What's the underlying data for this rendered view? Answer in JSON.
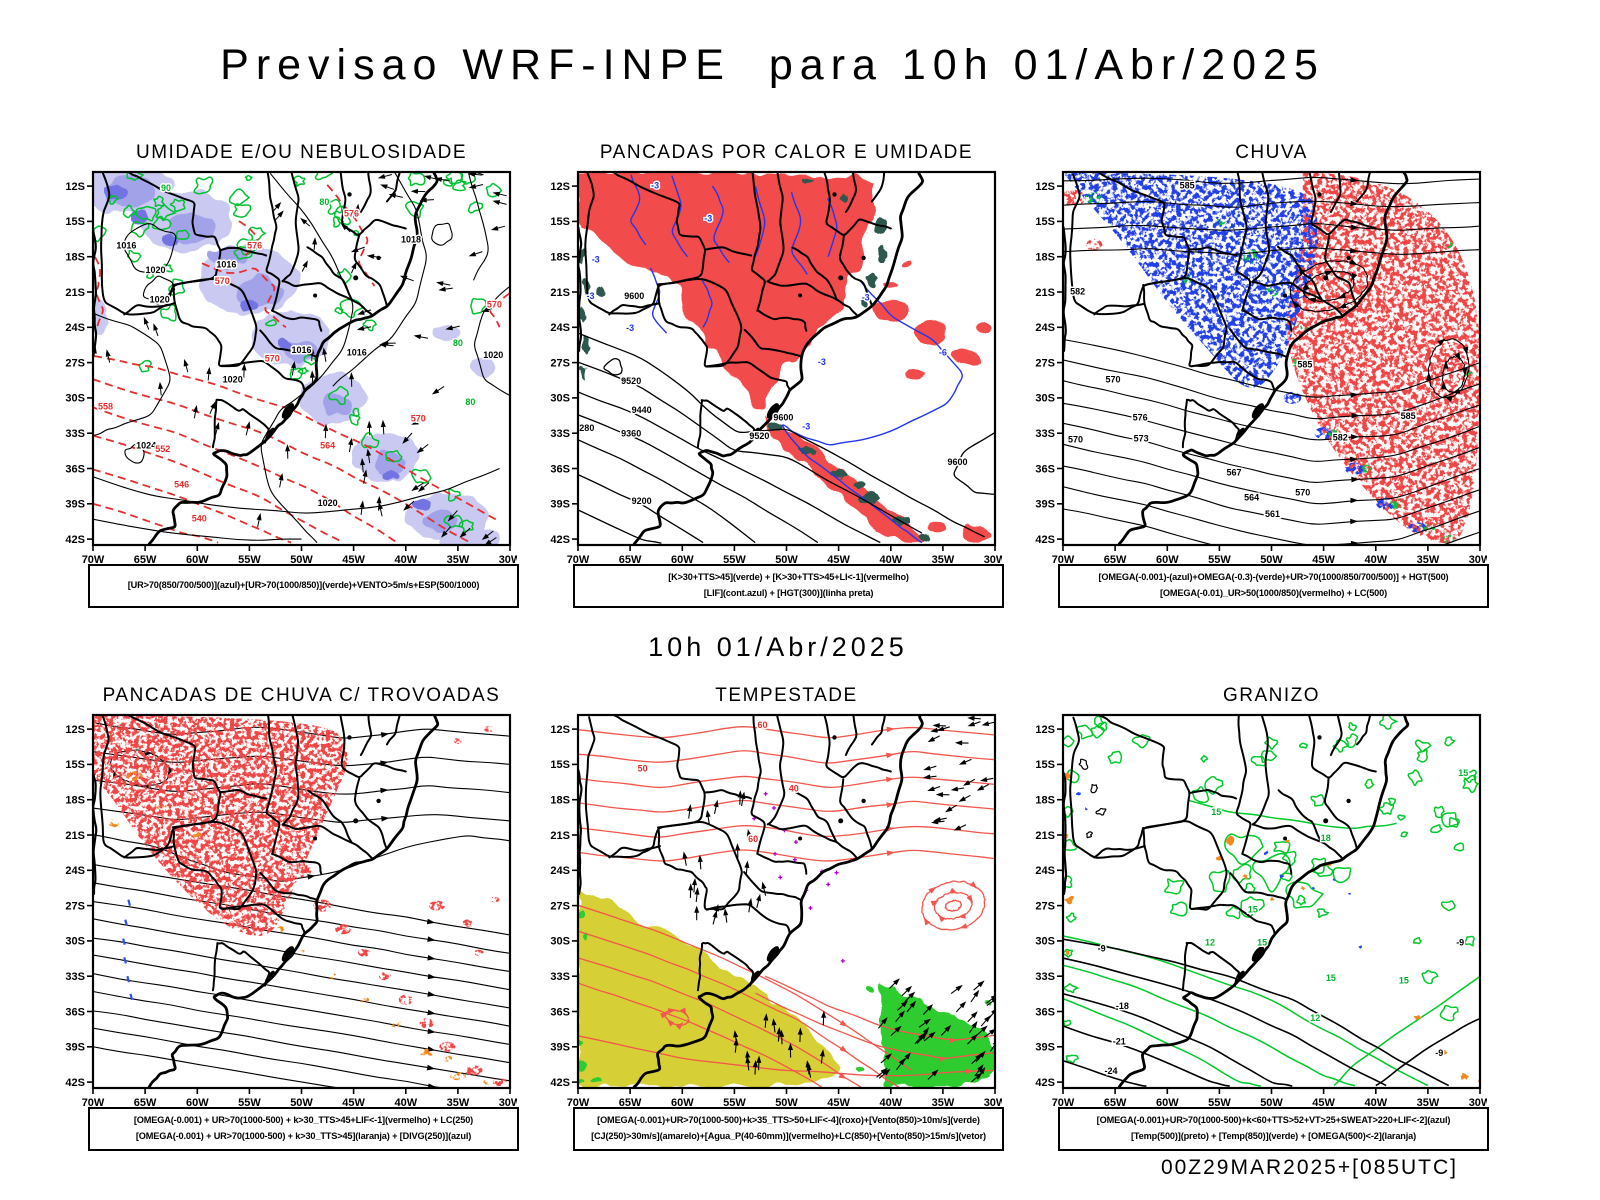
{
  "header": {
    "title": "Previsao WRF-INPE  para 10h 01/Abr/2025"
  },
  "subtitle": "10h 01/Abr/2025",
  "footer": "00Z29MAR2025+[085UTC]",
  "axes": {
    "lat_ticks": [
      "12S",
      "15S",
      "18S",
      "21S",
      "24S",
      "27S",
      "30S",
      "33S",
      "36S",
      "39S",
      "42S"
    ],
    "lon_ticks": [
      "70W",
      "65W",
      "60W",
      "55W",
      "50W",
      "45W",
      "40W",
      "35W",
      "30W"
    ]
  },
  "legend_colors": {
    "azul": "#2233ee",
    "verde": "#00c232",
    "vermelho": "#e62e2e",
    "laranja": "#f08a1e",
    "roxo": "#b300cc",
    "amarelo": "#d6cf35",
    "preto": "#000000",
    "sombra_umidade": "#a2a2e8"
  },
  "panels": [
    {
      "id": "umidade",
      "title": "UMIDADE E/OU NEBULOSIDADE",
      "caption_lines": [
        "[UR>70(850/700/500)](azul)+[UR>70(1000/850)](verde)+VENTO>5m/s+ESP(500/1000)"
      ],
      "map_labels": [
        "1016",
        "1020",
        "1020",
        "1016",
        "1018",
        "1016",
        "1016",
        "1020",
        "1024",
        "1020",
        "1020",
        "576",
        "570",
        "576",
        "570",
        "570",
        "564",
        "558",
        "552",
        "546",
        "540",
        "570",
        "80",
        "90",
        "80",
        "80"
      ]
    },
    {
      "id": "pancadas-calor",
      "title": "PANCADAS POR CALOR E UMIDADE",
      "caption_lines": [
        "[K>30+TTS>45](verde) + [K>30+TTS>45+LI<-1](vermelho)",
        "[LIF](cont.azul) + [HGT(300)](linha preta)"
      ],
      "map_labels": [
        "-3",
        "-3",
        "-3",
        "-3",
        "-3",
        "-3",
        "-3",
        "-3",
        "-6",
        "9600",
        "9520",
        "9440",
        "9360",
        "9280",
        "9200",
        "9520",
        "9600",
        "9600"
      ]
    },
    {
      "id": "chuva",
      "title": "CHUVA",
      "caption_lines": [
        "[OMEGA(-0.001)-(azul)+OMEGA(-0.3)-(verde)+UR>70(1000/850/700/500)] + HGT(500)",
        "[OMEGA(-0.01)_UR>50(1000/850)(vermelho) + LC(500)"
      ],
      "map_labels": [
        "585",
        "582",
        "585",
        "570",
        "576",
        "573",
        "570",
        "567",
        "564",
        "561",
        "582",
        "585",
        "570"
      ]
    },
    {
      "id": "trovoadas",
      "title": "PANCADAS DE CHUVA C/ TROVOADAS",
      "caption_lines": [
        "[OMEGA(-0.001) + UR>70(1000-500) + k>30_TTS>45+LIF<-1](vermelho) + LC(250)",
        "[OMEGA(-0.001) + UR>70(1000-500) + k>30_TTS>45](laranja) + [DIVG(250)](azul)"
      ],
      "map_labels": []
    },
    {
      "id": "tempestade",
      "title": "TEMPESTADE",
      "caption_lines": [
        "[OMEGA(-0.001)+UR>70(1000-500)+k>35_TTS>50+LIF<-4](roxo)+[Vento(850)>10m/s](verde)",
        "[CJ(250)>30m/s](amarelo)+[Agua_P(40-60mm)](vermelho)+LC(850)+[Vento(850)>15m/s](vetor)"
      ],
      "map_labels": [
        "50",
        "60",
        "40",
        "60"
      ]
    },
    {
      "id": "granizo",
      "title": "GRANIZO",
      "caption_lines": [
        "[OMEGA(-0.001)+UR>70(1000-500)+k<60+TTS>52+VT>25+SWEAT>220+LIF<-2](azul)",
        "[Temp(500)](preto) + [Temp(850)](verde) + [OMEGA(500)<-2](laranja)"
      ],
      "map_labels": [
        "15",
        "15",
        "18",
        "15",
        "12",
        "15",
        "15",
        "12",
        "15",
        "-9",
        "-9",
        "-18",
        "-21",
        "-24",
        "-9"
      ]
    }
  ]
}
